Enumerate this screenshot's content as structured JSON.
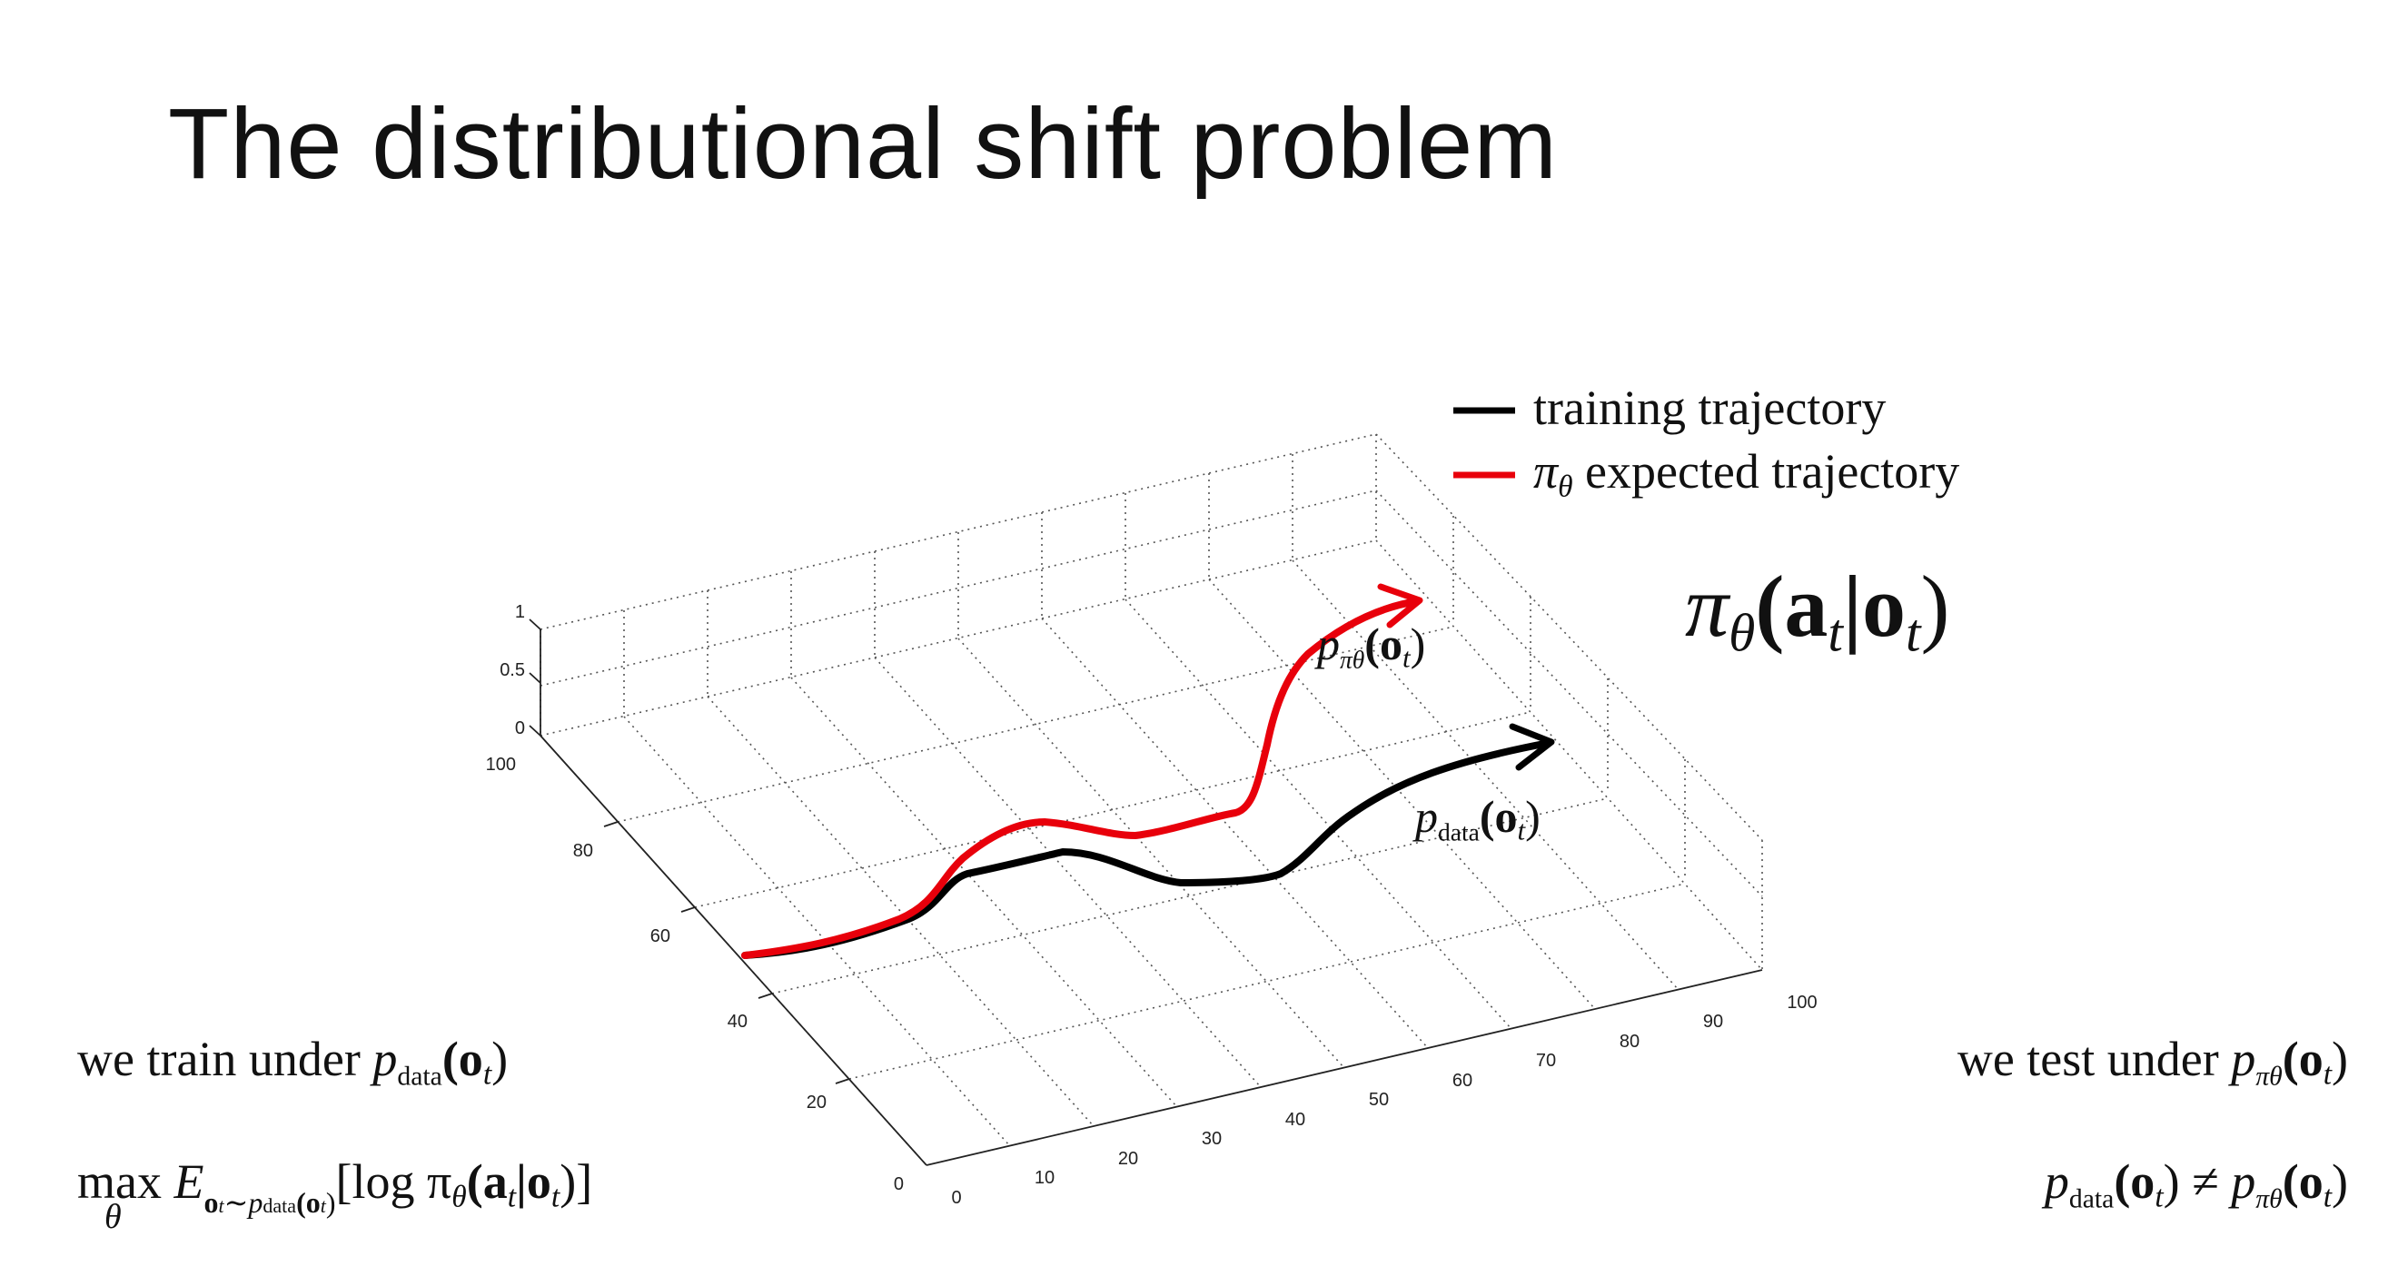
{
  "slide": {
    "title": "The distributional shift problem",
    "legend": {
      "items": [
        {
          "label": "training trajectory",
          "color": "#000000"
        },
        {
          "label": "expected trajectory",
          "prefix": "π",
          "prefix_sub": "θ",
          "color": "#e8000b"
        }
      ]
    },
    "policy_formula": {
      "pi": "π",
      "sub": "θ",
      "args": "(a",
      "t1": "t",
      "bar": "|o",
      "t2": "t",
      "close": ")"
    },
    "curve_labels": {
      "red": {
        "p": "p",
        "sub": "πθ",
        "arg": "(o",
        "t": "t",
        "close": ")"
      },
      "black": {
        "p": "p",
        "sub": "data",
        "arg": "(o",
        "t": "t",
        "close": ")"
      }
    },
    "left_text": {
      "train_prefix": "we train under ",
      "train_p": "p",
      "train_sub": "data",
      "train_arg": "(o",
      "train_t": "t",
      "train_close": ")",
      "objective_max": "max",
      "objective_theta": "θ",
      "objective_E": "E",
      "objective_sub": "o",
      "objective_sub_t": "t",
      "objective_sub_rest": "∼p",
      "objective_sub_data": "data",
      "objective_sub_arg": "(o",
      "objective_sub_arg_t": "t",
      "objective_sub_close": ")",
      "objective_body": "[log π",
      "objective_body_theta": "θ",
      "objective_body_args": "(a",
      "objective_body_t1": "t",
      "objective_body_bar": "|o",
      "objective_body_t2": "t",
      "objective_body_close": ")]"
    },
    "right_text": {
      "test_prefix": "we test under ",
      "test_p": "p",
      "test_sub": "πθ",
      "test_arg": "(o",
      "test_t": "t",
      "test_close": ")",
      "neq_p1": "p",
      "neq_sub1": "data",
      "neq_arg1": "(o",
      "neq_t1": "t",
      "neq_close1": ")",
      "neq_sym": " ≠ ",
      "neq_p2": "p",
      "neq_sub2": "πθ",
      "neq_arg2": "(o",
      "neq_t2": "t",
      "neq_close2": ")"
    },
    "axes": {
      "z_ticks": [
        "1",
        "0.5",
        "0"
      ],
      "y_ticks": [
        "100",
        "80",
        "60",
        "40",
        "20",
        "0"
      ],
      "x_ticks": [
        "0",
        "10",
        "20",
        "30",
        "40",
        "50",
        "60",
        "70",
        "80",
        "90",
        "100"
      ]
    },
    "colors": {
      "black_curve": "#000000",
      "red_curve": "#e8000b",
      "grid": "#555555"
    }
  }
}
